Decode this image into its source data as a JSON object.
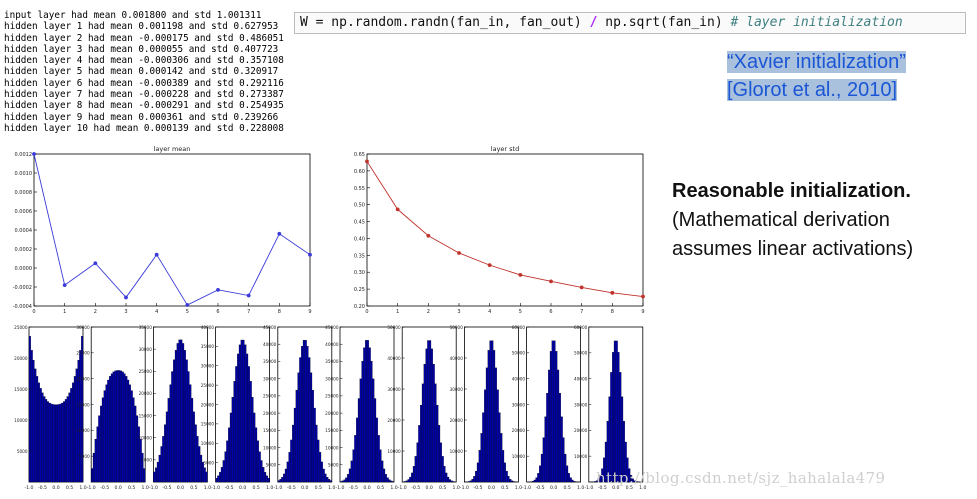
{
  "log_lines": [
    "input layer had mean 0.001800 and std 1.001311",
    "hidden layer 1 had mean 0.001198 and std 0.627953",
    "hidden layer 2 had mean -0.000175 and std 0.486051",
    "hidden layer 3 had mean 0.000055 and std 0.407723",
    "hidden layer 4 had mean -0.000306 and std 0.357108",
    "hidden layer 5 had mean 0.000142 and std 0.320917",
    "hidden layer 6 had mean -0.000389 and std 0.292116",
    "hidden layer 7 had mean -0.000228 and std 0.273387",
    "hidden layer 8 had mean -0.000291 and std 0.254935",
    "hidden layer 9 had mean 0.000361 and std 0.239266",
    "hidden layer 10 had mean 0.000139 and std 0.228008"
  ],
  "code": {
    "part1": "W = np.random.randn(fan_in, fan_out) ",
    "op": "/",
    "part2": " np.sqrt(fan_in) ",
    "comment": "# layer initialization"
  },
  "citation": {
    "line1": "“Xavier initialization”",
    "line2": "[Glorot et al., 2010]"
  },
  "note": {
    "bold": "Reasonable initialization.",
    "line2": "(Mathematical derivation",
    "line3": "assumes linear activations)"
  },
  "watermark": "http://blog.csdn.net/sjz_hahalala479",
  "colors": {
    "mean_line": "#3b3bd9",
    "std_line": "#c0322b",
    "hist_fill": "#0000a8",
    "xavier_text": "#1a56d6"
  },
  "chart_data": [
    {
      "type": "line",
      "title": "layer mean",
      "x": [
        0,
        1,
        2,
        3,
        4,
        5,
        6,
        7,
        8,
        9
      ],
      "values": [
        0.0012,
        -0.00018,
        5e-05,
        -0.00031,
        0.00014,
        -0.00039,
        -0.00023,
        -0.00029,
        0.00036,
        0.00014
      ],
      "xlim": [
        0,
        9
      ],
      "ylim": [
        -0.0004,
        0.0012
      ],
      "xticks": [
        "0",
        "1",
        "2",
        "3",
        "4",
        "5",
        "6",
        "7",
        "8",
        "9"
      ],
      "yticks": [
        "-0.0004",
        "-0.0002",
        "0.0000",
        "0.0002",
        "0.0004",
        "0.0006",
        "0.0008",
        "0.0010",
        "0.0012"
      ]
    },
    {
      "type": "line",
      "title": "layer std",
      "x": [
        0,
        1,
        2,
        3,
        4,
        5,
        6,
        7,
        8,
        9
      ],
      "values": [
        0.628,
        0.486,
        0.408,
        0.357,
        0.321,
        0.292,
        0.273,
        0.255,
        0.239,
        0.228
      ],
      "xlim": [
        0,
        9
      ],
      "ylim": [
        0.2,
        0.65
      ],
      "xticks": [
        "0",
        "1",
        "2",
        "3",
        "4",
        "5",
        "6",
        "7",
        "8",
        "9"
      ],
      "yticks": [
        "0.20",
        "0.25",
        "0.30",
        "0.35",
        "0.40",
        "0.45",
        "0.50",
        "0.55",
        "0.60",
        "0.65"
      ]
    },
    {
      "type": "bar",
      "title": "",
      "layers": [
        {
          "ymax": 25000,
          "yticks": [
            "5000",
            "10000",
            "15000",
            "20000",
            "25000"
          ],
          "shape": "u"
        },
        {
          "ymax": 30000,
          "yticks": [
            "5000",
            "10000",
            "15000",
            "20000",
            "25000",
            "30000"
          ],
          "shape": "flat"
        },
        {
          "ymax": 35000,
          "yticks": [
            "5000",
            "10000",
            "15000",
            "20000",
            "25000",
            "30000",
            "35000"
          ],
          "shape": "bell"
        },
        {
          "ymax": 40000,
          "yticks": [
            "5000",
            "10000",
            "15000",
            "20000",
            "25000",
            "30000",
            "35000",
            "40000"
          ],
          "shape": "bell"
        },
        {
          "ymax": 45000,
          "yticks": [
            "5000",
            "10000",
            "15000",
            "20000",
            "25000",
            "30000",
            "35000",
            "40000",
            "45000"
          ],
          "shape": "bell"
        },
        {
          "ymax": 45000,
          "yticks": [
            "5000",
            "10000",
            "15000",
            "20000",
            "25000",
            "30000",
            "35000",
            "40000",
            "45000"
          ],
          "shape": "bell"
        },
        {
          "ymax": 50000,
          "yticks": [
            "10000",
            "20000",
            "30000",
            "40000",
            "50000"
          ],
          "shape": "bell"
        },
        {
          "ymax": 50000,
          "yticks": [
            "10000",
            "20000",
            "30000",
            "40000",
            "50000"
          ],
          "shape": "bell"
        },
        {
          "ymax": 60000,
          "yticks": [
            "10000",
            "20000",
            "30000",
            "40000",
            "50000",
            "60000"
          ],
          "shape": "bell"
        },
        {
          "ymax": 60000,
          "yticks": [
            "10000",
            "20000",
            "30000",
            "40000",
            "50000",
            "60000"
          ],
          "shape": "bell"
        }
      ],
      "xticks": [
        "-1.0",
        "-0.5",
        "0.0",
        "0.5",
        "1.0"
      ],
      "xlim": [
        -1,
        1
      ]
    }
  ]
}
